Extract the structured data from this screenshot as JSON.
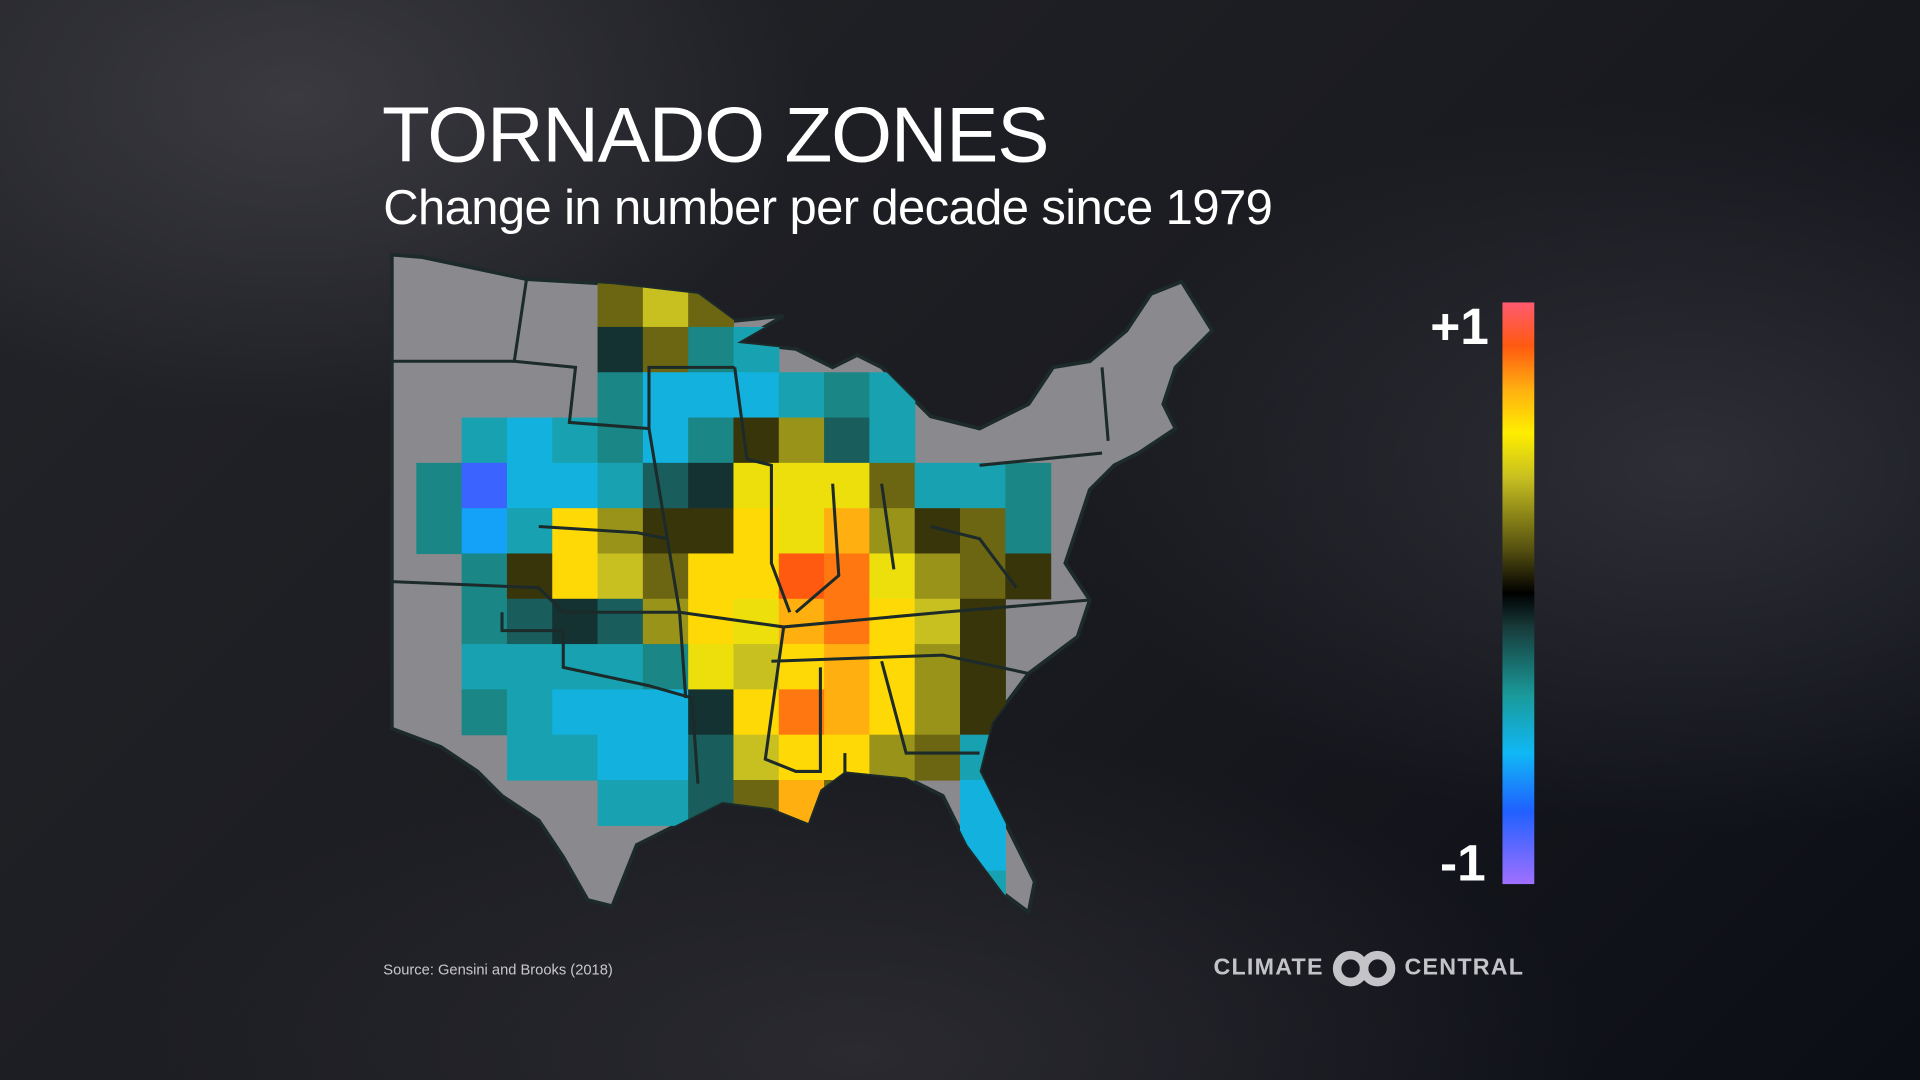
{
  "header": {
    "title": "TORNADO ZONES",
    "subtitle": "Change in number per decade since 1979"
  },
  "legend": {
    "max_label": "+1",
    "min_label": "-1",
    "range": [
      -1,
      1
    ],
    "color_stops": [
      [
        -1,
        "#a070ff"
      ],
      [
        -0.75,
        "#2060ff"
      ],
      [
        -0.55,
        "#10b8f5"
      ],
      [
        -0.35,
        "#1a9a9a"
      ],
      [
        -0.12,
        "#183c3c"
      ],
      [
        0,
        "#000000"
      ],
      [
        0.15,
        "#555010"
      ],
      [
        0.4,
        "#c8c020"
      ],
      [
        0.55,
        "#ffee00"
      ],
      [
        0.7,
        "#ffb010"
      ],
      [
        0.85,
        "#ff5a10"
      ],
      [
        1,
        "#ff5a70"
      ]
    ]
  },
  "map": {
    "land_color": "#8a8a8e",
    "border_color": "#1c2a2a",
    "grid_values": [
      [
        null,
        null,
        null,
        null,
        0.2,
        0.4,
        0.2,
        null,
        null,
        null,
        null,
        null,
        null,
        null
      ],
      [
        null,
        null,
        null,
        null,
        -0.1,
        0.2,
        -0.3,
        -0.4,
        null,
        null,
        null,
        null,
        null,
        null
      ],
      [
        null,
        null,
        null,
        null,
        -0.3,
        -0.5,
        -0.5,
        -0.5,
        -0.4,
        -0.3,
        -0.4,
        null,
        null,
        null
      ],
      [
        null,
        -0.4,
        -0.5,
        -0.4,
        -0.3,
        -0.5,
        -0.3,
        0.1,
        0.3,
        -0.2,
        -0.4,
        null,
        null,
        null
      ],
      [
        -0.3,
        -0.8,
        -0.5,
        -0.5,
        -0.4,
        -0.2,
        -0.1,
        0.5,
        0.5,
        0.5,
        0.2,
        -0.4,
        -0.4,
        -0.3
      ],
      [
        -0.3,
        -0.6,
        -0.4,
        0.6,
        0.3,
        0.1,
        0.1,
        0.6,
        0.5,
        0.7,
        0.3,
        0.1,
        0.2,
        -0.3
      ],
      [
        null,
        -0.3,
        0.1,
        0.6,
        0.4,
        0.2,
        0.6,
        0.6,
        0.85,
        0.8,
        0.5,
        0.3,
        0.2,
        0.1
      ],
      [
        null,
        -0.3,
        -0.2,
        -0.1,
        -0.2,
        0.3,
        0.6,
        0.5,
        0.7,
        0.8,
        0.6,
        0.4,
        0.1,
        null
      ],
      [
        null,
        -0.4,
        -0.4,
        -0.4,
        -0.4,
        -0.3,
        0.5,
        0.4,
        0.6,
        0.7,
        0.6,
        0.3,
        0.1,
        null
      ],
      [
        null,
        -0.3,
        -0.4,
        -0.5,
        -0.5,
        -0.5,
        -0.1,
        0.6,
        0.8,
        0.7,
        0.6,
        0.3,
        0.1,
        null
      ],
      [
        null,
        null,
        -0.4,
        -0.4,
        -0.5,
        -0.5,
        -0.2,
        0.4,
        0.6,
        0.6,
        0.3,
        0.2,
        -0.4,
        null
      ],
      [
        null,
        null,
        null,
        null,
        -0.4,
        -0.4,
        -0.2,
        0.2,
        0.7,
        0.2,
        null,
        null,
        -0.5,
        null
      ],
      [
        null,
        null,
        null,
        null,
        null,
        null,
        null,
        null,
        null,
        null,
        null,
        null,
        -0.5,
        null
      ],
      [
        null,
        null,
        null,
        null,
        null,
        null,
        null,
        null,
        null,
        null,
        null,
        null,
        -0.4,
        null
      ]
    ]
  },
  "footer": {
    "source": "Source: Gensini and Brooks (2018)",
    "logo_left": "CLIMATE",
    "logo_right": "CENTRAL"
  }
}
